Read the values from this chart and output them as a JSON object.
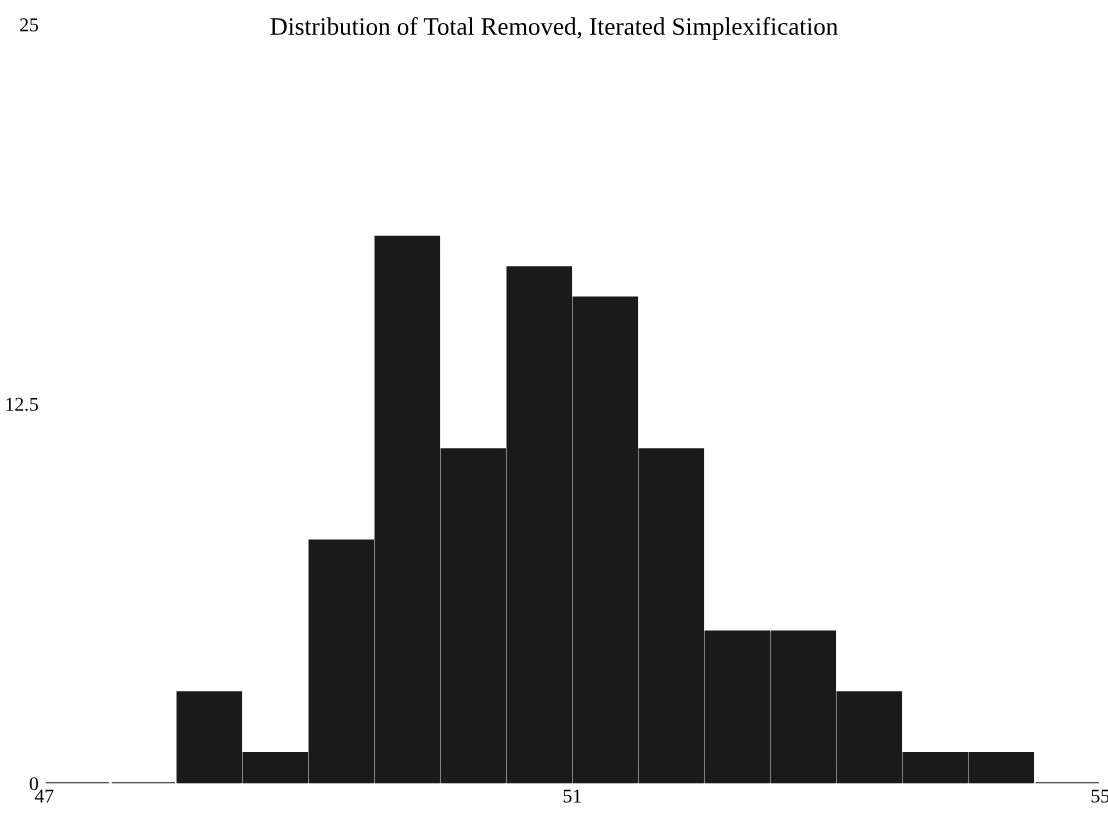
{
  "chart_data": {
    "type": "histogram",
    "title": "Distribution of Total Removed, Iterated Simplexification",
    "bins": [
      47,
      47.5,
      48,
      48.5,
      49,
      49.5,
      50,
      50.5,
      51,
      51.5,
      52,
      52.5,
      53,
      53.5,
      54,
      54.5,
      55
    ],
    "values": [
      0,
      0,
      3,
      1,
      8,
      18,
      11,
      17,
      16,
      11,
      5,
      5,
      3,
      1,
      1,
      0
    ],
    "color": "#1a1a1a",
    "xlim": [
      47,
      55
    ],
    "xticks": [
      47,
      51,
      55
    ],
    "ylim": [
      0,
      25
    ],
    "yticks": [
      0,
      12.5,
      25
    ],
    "grid": false,
    "legend": false
  }
}
